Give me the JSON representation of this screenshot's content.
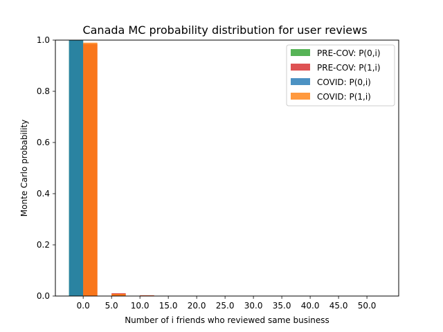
{
  "chart_data": {
    "type": "bar",
    "title": "Canada MC probability distribution for user reviews",
    "xlabel": "Number of i friends who reviewed same business",
    "ylabel": "Monte Carlo probability",
    "ylim": [
      0,
      1
    ],
    "yticks": [
      "0.0",
      "0.2",
      "0.4",
      "0.6",
      "0.8",
      "1.0"
    ],
    "x": [
      0,
      5,
      10,
      15,
      20,
      25,
      30,
      35,
      40,
      45,
      50
    ],
    "xtick_labels": [
      "0.0",
      "5.0",
      "10.0",
      "15.0",
      "20.0",
      "25.0",
      "30.0",
      "35.0",
      "40.0",
      "45.0",
      "50.0"
    ],
    "grid": false,
    "legend_position": "top-right",
    "series": [
      {
        "name": "PRE-COV: P(0,i)",
        "color": "#2ca02c",
        "offset": "left",
        "values": [
          1.0,
          0,
          0,
          0,
          0,
          0,
          0,
          0,
          0,
          0,
          0
        ]
      },
      {
        "name": "PRE-COV: P(1,i)",
        "color": "#d62728",
        "offset": "right",
        "values": [
          0.985,
          0.011,
          0.003,
          0.001,
          0,
          0,
          0,
          0,
          0,
          0,
          0
        ]
      },
      {
        "name": "COVID: P(0,i)",
        "color": "#1f77b4",
        "offset": "left",
        "values": [
          1.0,
          0,
          0,
          0,
          0,
          0,
          0,
          0,
          0,
          0,
          0
        ]
      },
      {
        "name": "COVID: P(1,i)",
        "color": "#ff7f0e",
        "offset": "right",
        "values": [
          0.99,
          0.008,
          0.002,
          0,
          0,
          0,
          0,
          0,
          0,
          0,
          0
        ]
      }
    ]
  }
}
